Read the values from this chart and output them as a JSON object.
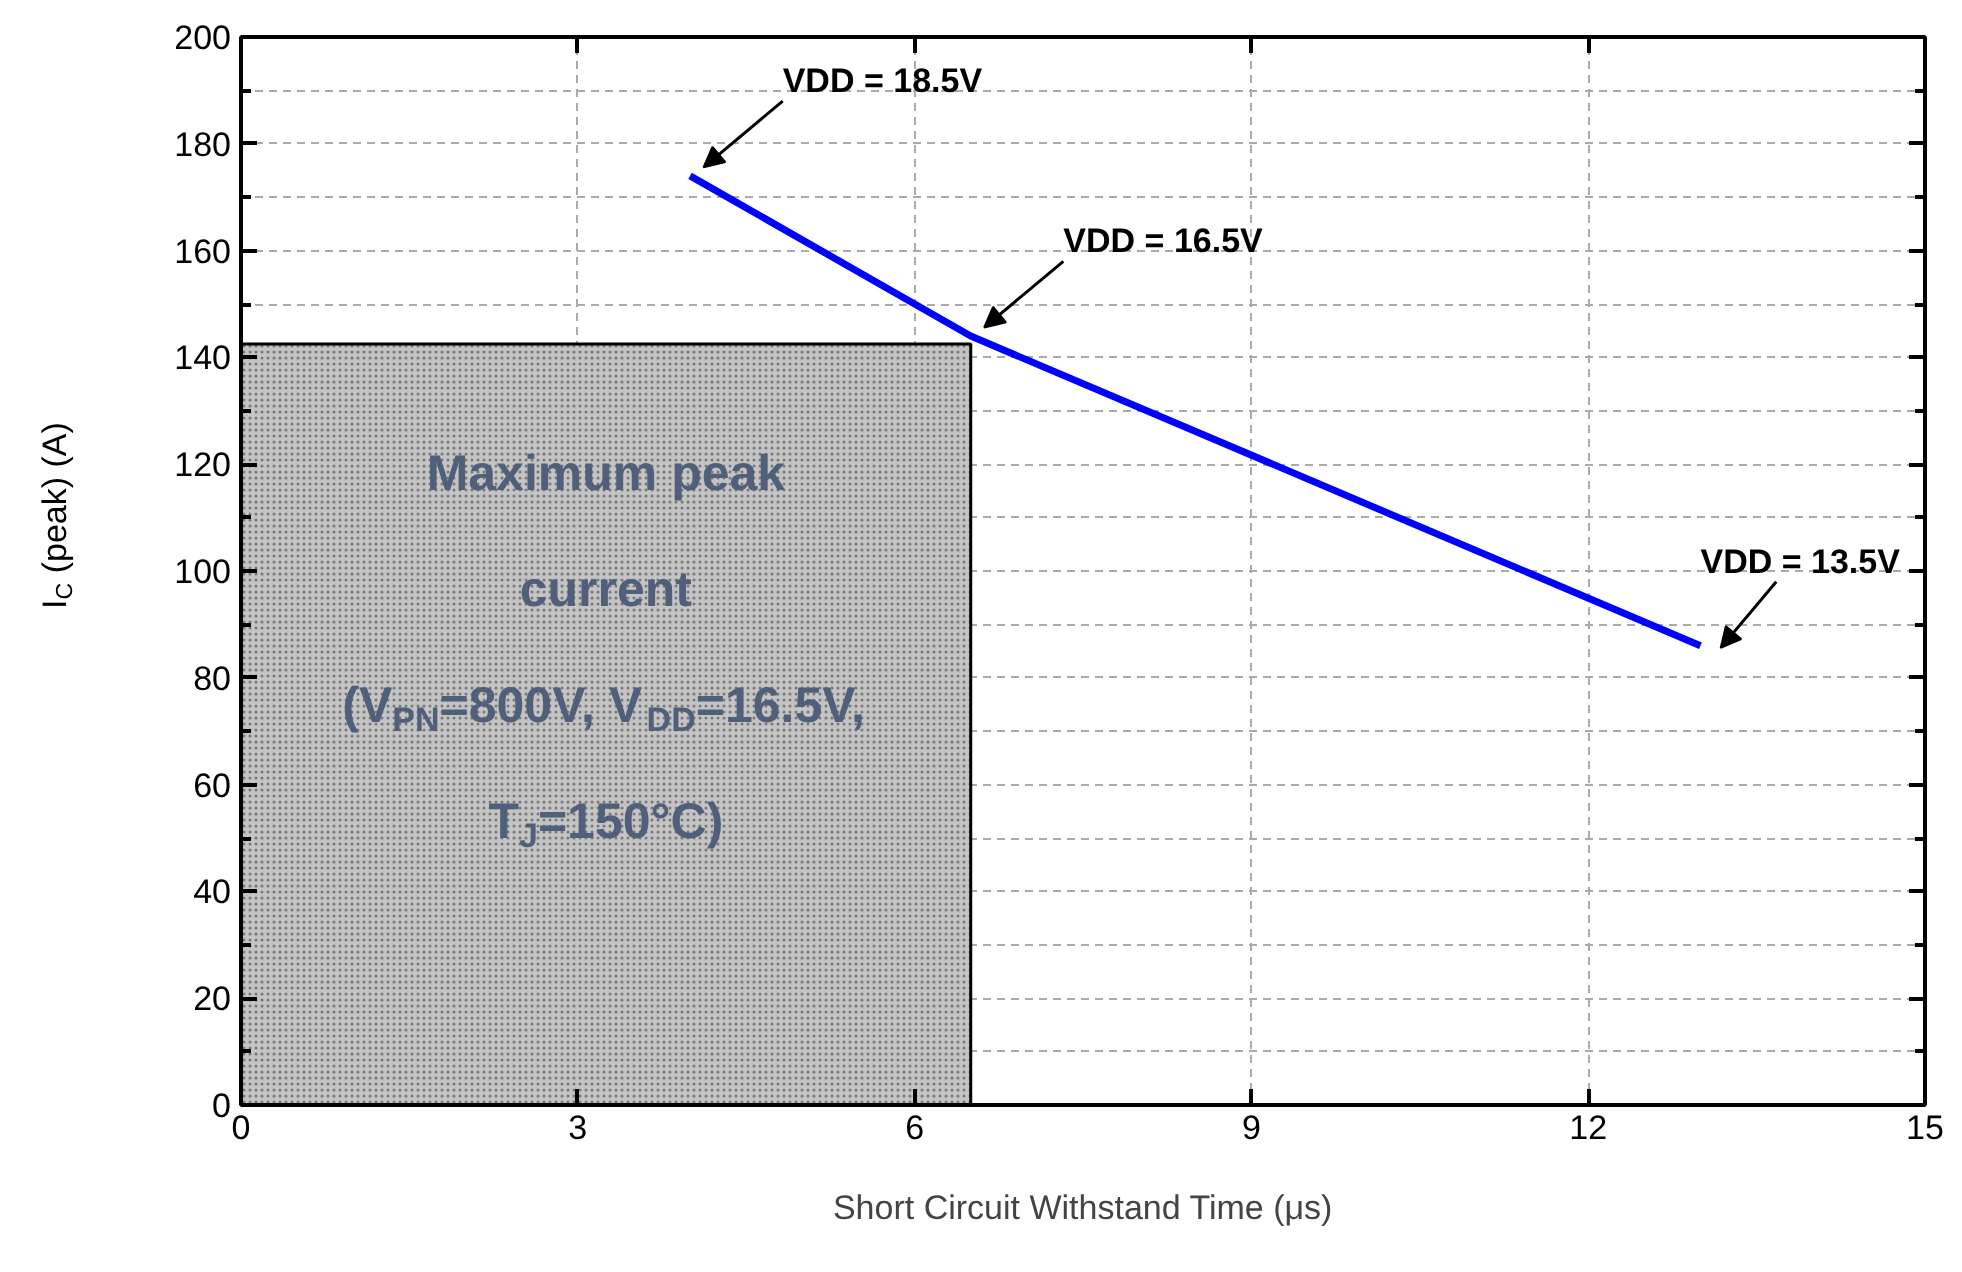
{
  "chart_data": {
    "type": "line",
    "xlabel": "Short Circuit Withstand Time (μs)",
    "ylabel": "I$_{C}$ (peak) (A)",
    "series": [
      {
        "type": "area",
        "color": "#c4c4c4",
        "x": [
          0,
          6.5
        ],
        "values": [
          142.5,
          142.5
        ]
      },
      {
        "type": "line",
        "color": "#0000ff",
        "x": [
          4.0,
          6.5,
          13.0
        ],
        "values": [
          174,
          144,
          86
        ]
      }
    ],
    "xlim": [
      0,
      15
    ],
    "xticks": [
      0,
      3,
      6,
      9,
      12,
      15
    ],
    "ylim": [
      0,
      200
    ],
    "yticks": [
      0,
      {
        "value": 10,
        "label": null
      },
      20,
      {
        "value": 30,
        "label": null
      },
      40,
      {
        "value": 50,
        "label": null
      },
      60,
      {
        "value": 70,
        "label": null
      },
      80,
      {
        "value": 90,
        "label": null
      },
      100,
      {
        "value": 110,
        "label": null
      },
      120,
      {
        "value": 130,
        "label": null
      },
      140,
      {
        "value": 150,
        "label": null
      },
      160,
      {
        "value": 170,
        "label": null
      },
      180,
      {
        "value": 190,
        "label": null
      },
      200
    ],
    "annotations": [
      {
        "text": "VDD = 18.5V",
        "x": 4.0,
        "y": 174
      },
      {
        "text": "VDD = 16.5V",
        "x": 6.5,
        "y": 144
      },
      {
        "text": "VDD = 13.5V",
        "x": 13.0,
        "y": 86
      },
      "Maximum peak\ncurrent\n(V$_{PN}$=800V, V$_{DD}$=16.5V,\nT$_{J}$=150°C)"
    ],
    "grid": true,
    "marker": "none",
    "line_style": "solid"
  }
}
